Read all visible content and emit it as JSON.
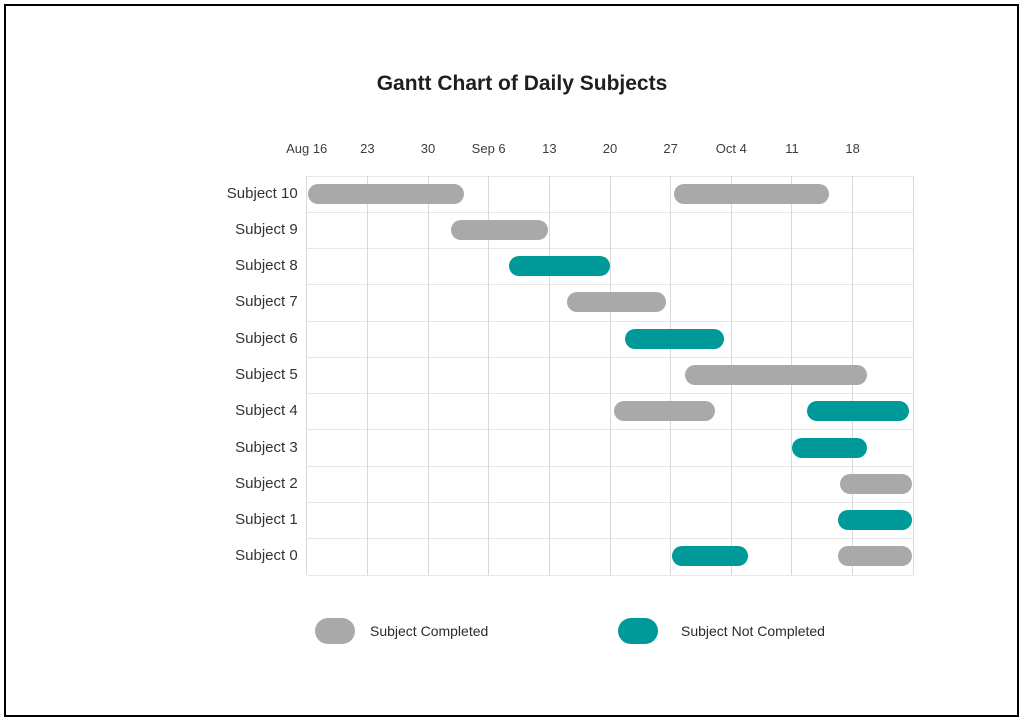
{
  "figure": {
    "background": "#ffffff",
    "border_color": "#000000"
  },
  "chart_data": {
    "type": "gantt",
    "title": "Gantt Chart of Daily Subjects",
    "grid": true,
    "legend_position": "bottom",
    "colors": {
      "completed": "#a9a9a9",
      "not_completed": "#009999",
      "gridline_vertical": "#d9d9d9",
      "gridline_horizontal": "#e7e7e7"
    },
    "x_axis": {
      "unit": "days-from-Aug-16",
      "range_days": [
        0,
        70
      ],
      "gridline_step_days": 7,
      "ticks": [
        {
          "day": 0,
          "label": "Aug 16"
        },
        {
          "day": 7,
          "label": "23"
        },
        {
          "day": 14,
          "label": "30"
        },
        {
          "day": 21,
          "label": "Sep 6"
        },
        {
          "day": 28,
          "label": "13"
        },
        {
          "day": 35,
          "label": "20"
        },
        {
          "day": 42,
          "label": "27"
        },
        {
          "day": 49,
          "label": "Oct 4"
        },
        {
          "day": 56,
          "label": "11"
        },
        {
          "day": 63,
          "label": "18"
        }
      ]
    },
    "rows": [
      {
        "label": "Subject 10",
        "bars": [
          {
            "start_day": 0.1,
            "end_day": 18.2,
            "status": "completed"
          },
          {
            "start_day": 42.4,
            "end_day": 60.3,
            "status": "completed"
          }
        ]
      },
      {
        "label": "Subject 9",
        "bars": [
          {
            "start_day": 16.6,
            "end_day": 27.8,
            "status": "completed"
          }
        ]
      },
      {
        "label": "Subject 8",
        "bars": [
          {
            "start_day": 23.4,
            "end_day": 35.0,
            "status": "not_completed"
          }
        ]
      },
      {
        "label": "Subject 7",
        "bars": [
          {
            "start_day": 30.0,
            "end_day": 41.5,
            "status": "completed"
          }
        ]
      },
      {
        "label": "Subject 6",
        "bars": [
          {
            "start_day": 36.7,
            "end_day": 48.2,
            "status": "not_completed"
          }
        ]
      },
      {
        "label": "Subject 5",
        "bars": [
          {
            "start_day": 43.7,
            "end_day": 64.6,
            "status": "completed"
          }
        ]
      },
      {
        "label": "Subject 4",
        "bars": [
          {
            "start_day": 35.5,
            "end_day": 47.1,
            "status": "completed"
          },
          {
            "start_day": 57.7,
            "end_day": 69.5,
            "status": "not_completed"
          }
        ]
      },
      {
        "label": "Subject 3",
        "bars": [
          {
            "start_day": 56.0,
            "end_day": 64.7,
            "status": "not_completed"
          }
        ]
      },
      {
        "label": "Subject 2",
        "bars": [
          {
            "start_day": 61.5,
            "end_day": 69.8,
            "status": "completed"
          }
        ]
      },
      {
        "label": "Subject 1",
        "bars": [
          {
            "start_day": 61.3,
            "end_day": 69.9,
            "status": "not_completed"
          }
        ]
      },
      {
        "label": "Subject 0",
        "bars": [
          {
            "start_day": 42.2,
            "end_day": 50.9,
            "status": "not_completed"
          },
          {
            "start_day": 61.3,
            "end_day": 69.8,
            "status": "completed"
          }
        ]
      }
    ],
    "legend": [
      {
        "label": "Subject Completed",
        "status": "completed"
      },
      {
        "label": "Subject Not Completed",
        "status": "not_completed"
      }
    ]
  }
}
